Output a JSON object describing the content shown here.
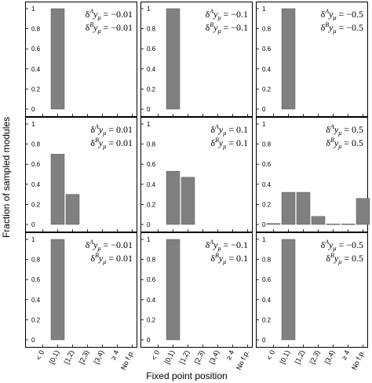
{
  "chart_data": {
    "type": "bar",
    "xlabel": "Fixed point position",
    "ylabel": "Fraction of sampled modules",
    "categories": [
      "< 0",
      "[0,1)",
      "[1,2)",
      "[2,3)",
      "[3,4)",
      "≥ 4",
      "No f.p."
    ],
    "ylim": [
      0,
      1
    ],
    "yticks": [
      "0",
      "0.2",
      "0.4",
      "0.6",
      "0.8",
      "1"
    ],
    "bar_color": "#808080",
    "panels": [
      {
        "row": 0,
        "col": 0,
        "dA": "−0.01",
        "dB": "−0.01",
        "values": [
          0,
          1,
          0,
          0,
          0,
          0,
          0
        ]
      },
      {
        "row": 0,
        "col": 1,
        "dA": "−0.1",
        "dB": "−0.1",
        "values": [
          0,
          1,
          0,
          0,
          0,
          0,
          0
        ]
      },
      {
        "row": 0,
        "col": 2,
        "dA": "−0.5",
        "dB": "−0.5",
        "values": [
          0,
          1,
          0,
          0,
          0,
          0,
          0
        ]
      },
      {
        "row": 1,
        "col": 0,
        "dA": "0.01",
        "dB": "0.01",
        "values": [
          0,
          0.7,
          0.3,
          0,
          0,
          0,
          0
        ]
      },
      {
        "row": 1,
        "col": 1,
        "dA": "0.1",
        "dB": "0.1",
        "values": [
          0,
          0.53,
          0.47,
          0,
          0,
          0,
          0
        ]
      },
      {
        "row": 1,
        "col": 2,
        "dA": "0.5",
        "dB": "0.5",
        "values": [
          0.01,
          0.32,
          0.32,
          0.08,
          0.005,
          0.005,
          0.26
        ]
      },
      {
        "row": 2,
        "col": 0,
        "dA": "−0.01",
        "dB": "0.01",
        "values": [
          0,
          1,
          0,
          0,
          0,
          0,
          0
        ]
      },
      {
        "row": 2,
        "col": 1,
        "dA": "−0.1",
        "dB": "0.1",
        "values": [
          0,
          1,
          0,
          0,
          0,
          0,
          0
        ]
      },
      {
        "row": 2,
        "col": 2,
        "dA": "−0.5",
        "dB": "0.5",
        "values": [
          0,
          1,
          0,
          0,
          0,
          0,
          0
        ]
      }
    ],
    "annotation_parts": {
      "delta": "δ",
      "supA": "A",
      "supB": "B",
      "y": "y",
      "mu": "μ",
      "eq": " = "
    }
  }
}
